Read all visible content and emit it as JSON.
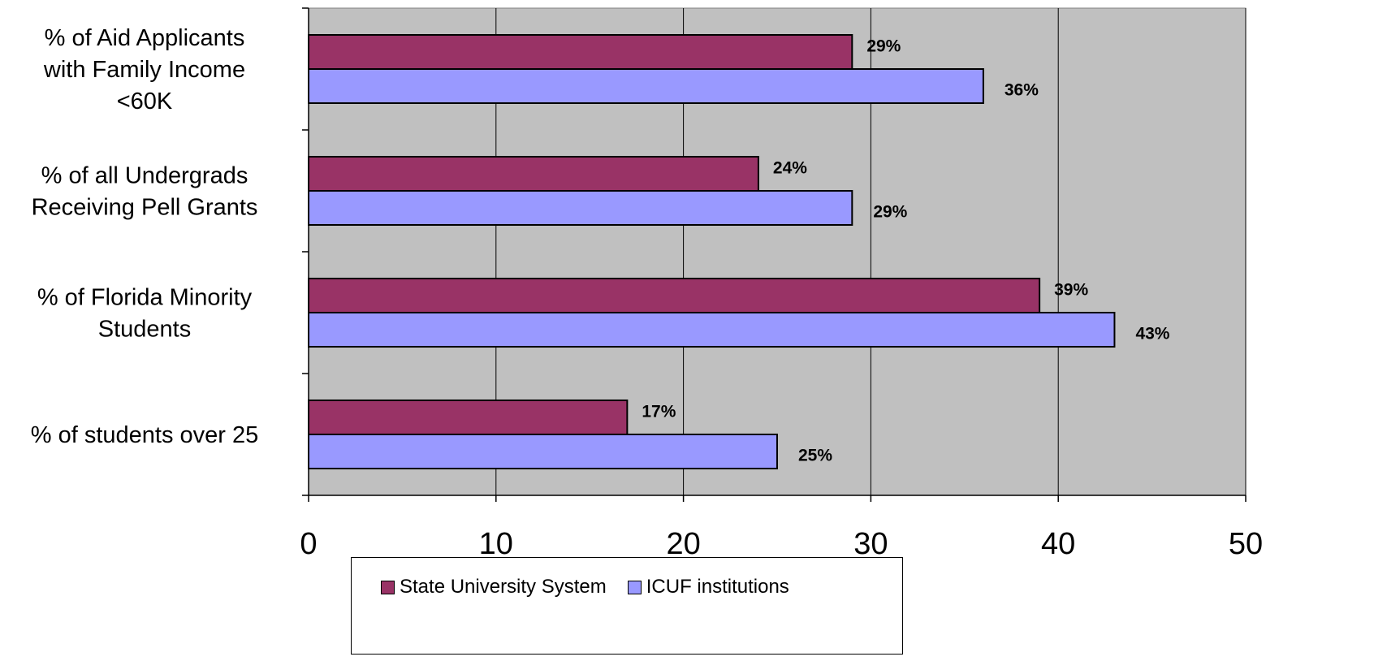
{
  "chart_data": {
    "type": "bar",
    "orientation": "horizontal",
    "categories": [
      [
        "% of Aid Applicants",
        "with Family Income",
        "<60K"
      ],
      [
        "% of all Undergrads",
        "Receiving Pell Grants"
      ],
      [
        "% of Florida Minority",
        "Students"
      ],
      [
        "% of students over 25"
      ]
    ],
    "series": [
      {
        "name": "State University System",
        "color": "#993366",
        "values": [
          29,
          24,
          39,
          17
        ],
        "labels": [
          "29%",
          "24%",
          "39%",
          "17%"
        ]
      },
      {
        "name": "ICUF institutions",
        "color": "#9999ff",
        "values": [
          36,
          29,
          43,
          25
        ],
        "labels": [
          "36%",
          "29%",
          "43%",
          "25%"
        ]
      }
    ],
    "xlim": [
      0,
      50
    ],
    "xticks": [
      0,
      10,
      20,
      30,
      40,
      50
    ],
    "grid": true,
    "plot_background": "#c0c0c0",
    "legend_position": "bottom"
  }
}
